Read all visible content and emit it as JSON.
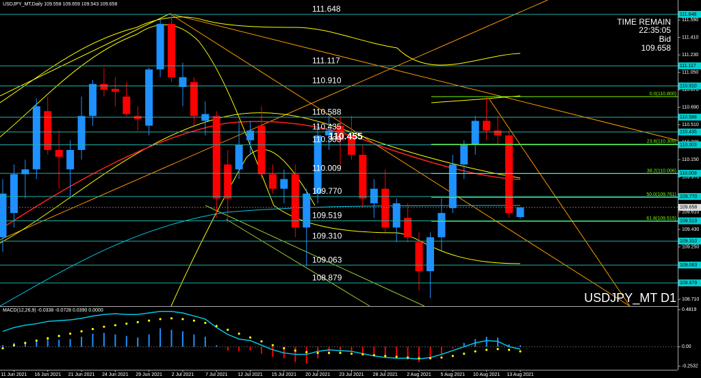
{
  "header": "USDJPY_MT,Daily  109.558 109.659 109.543 109.658",
  "info": {
    "time_label": "TIME REMAIN",
    "time": "22:35:05",
    "bid_label": "Bid",
    "symbol": "USDJPY_MT D1"
  },
  "chart_data": [
    {
      "type": "candlestick",
      "categories": [
        null,
        "11 Jun 2021",
        null,
        null,
        "16 Jun 2021",
        null,
        null,
        "21 Jun 2021",
        null,
        null,
        "24 Jun 2021",
        null,
        null,
        "29 Jun 2021",
        null,
        null,
        "2 Jul 2021",
        null,
        null,
        "7 Jul 2021",
        null,
        null,
        "12 Jul 2021",
        null,
        null,
        "15 Jul 2021",
        null,
        null,
        "20 Jul 2021",
        null,
        null,
        "23 Jul 2021",
        null,
        null,
        "28 Jul 2021",
        null,
        null,
        "2 Aug 2021",
        null,
        null,
        "5 Aug 2021",
        null,
        null,
        "10 Aug 2021",
        null,
        null,
        "13 Aug 2021"
      ],
      "open": [
        109.35,
        109.6,
        110.0,
        110.05,
        110.65,
        110.25,
        110.05,
        110.25,
        110.6,
        110.93,
        110.88,
        110.8,
        110.6,
        110.5,
        111.08,
        111.55,
        110.9,
        110.95,
        110.55,
        110.6,
        110.1,
        110.05,
        110.35,
        110.5,
        110.0,
        109.85,
        110.0,
        109.45,
        109.8,
        110.4,
        110.5,
        110.4,
        110.2,
        109.7,
        109.85,
        109.45,
        109.55,
        109.3,
        109.0,
        109.35,
        109.65,
        110.1,
        110.3,
        110.55,
        110.45,
        110.4,
        109.558
      ],
      "high": [
        109.95,
        110.1,
        110.15,
        110.78,
        110.8,
        110.45,
        110.35,
        110.8,
        110.97,
        111.1,
        111.0,
        110.95,
        110.7,
        111.1,
        111.6,
        111.66,
        111.15,
        111.0,
        110.75,
        110.65,
        110.25,
        110.55,
        110.55,
        110.7,
        110.1,
        110.05,
        110.1,
        109.85,
        110.55,
        110.6,
        110.6,
        110.6,
        110.3,
        109.95,
        110.05,
        109.75,
        109.7,
        109.4,
        109.4,
        109.75,
        110.2,
        110.35,
        110.6,
        110.8,
        110.6,
        110.45,
        109.659
      ],
      "low": [
        109.2,
        109.45,
        109.75,
        109.95,
        110.2,
        109.85,
        109.75,
        110.15,
        110.5,
        110.8,
        110.7,
        110.6,
        110.45,
        110.4,
        111.0,
        110.95,
        110.7,
        110.5,
        110.4,
        109.55,
        109.5,
        109.95,
        110.2,
        109.95,
        109.8,
        109.7,
        109.35,
        109.05,
        109.7,
        110.25,
        110.1,
        110.15,
        109.65,
        109.55,
        109.4,
        109.3,
        109.3,
        108.8,
        108.72,
        109.2,
        109.6,
        109.95,
        110.2,
        110.35,
        110.3,
        109.55,
        109.543
      ],
      "close": [
        109.8,
        110.0,
        110.05,
        110.7,
        110.25,
        110.18,
        110.25,
        110.6,
        110.93,
        110.87,
        110.85,
        110.62,
        110.57,
        111.08,
        111.55,
        111.0,
        111.0,
        110.6,
        110.62,
        109.75,
        109.75,
        110.3,
        110.45,
        110.0,
        109.85,
        109.95,
        109.45,
        109.8,
        110.4,
        110.45,
        110.35,
        110.2,
        109.75,
        109.85,
        109.45,
        109.7,
        109.35,
        109.0,
        109.35,
        109.6,
        110.1,
        110.3,
        110.55,
        110.45,
        110.4,
        109.6,
        109.658
      ],
      "up_color": "#1e90ff",
      "down_color": "#ff0000",
      "ylim": [
        108.64,
        111.796
      ],
      "yticks": [
        {
          "value": 111.59,
          "label": "111.590"
        },
        {
          "value": 111.41,
          "label": "111.410"
        },
        {
          "value": 111.23,
          "label": "111.230"
        },
        {
          "value": 111.05,
          "label": "111.050"
        },
        {
          "value": 110.87,
          "label": "110.870"
        },
        {
          "value": 110.69,
          "label": "110.690"
        },
        {
          "value": 110.51,
          "label": "110.510"
        },
        {
          "value": 110.33,
          "label": "110.330"
        },
        {
          "value": 110.15,
          "label": "110.150"
        },
        {
          "value": 109.97,
          "label": "109.970"
        },
        {
          "value": 109.61,
          "label": "109.610"
        },
        {
          "value": 109.43,
          "label": "109.430"
        },
        {
          "value": 109.25,
          "label": "109.250"
        },
        {
          "value": 108.71,
          "label": "108.710"
        }
      ],
      "levels": [
        111.648,
        111.117,
        {
          "value": 110.91,
          "label": "110.910"
        },
        110.588,
        110.435,
        110.303,
        110.009,
        {
          "value": 109.77,
          "label": "109.770"
        },
        109.519,
        {
          "value": 109.31,
          "label": "109.310"
        },
        109.063,
        108.879
      ],
      "fibo": [
        {
          "value": 110.8,
          "label": "0.0(110.800)"
        },
        {
          "value": 110.309,
          "label": "23.6(110.309)"
        },
        {
          "value": 110.006,
          "label": "38.2(110.006)"
        },
        {
          "value": 109.761,
          "label": "50.0(109.761)"
        },
        {
          "value": 109.515,
          "label": "61.8(109.515)"
        }
      ],
      "price_label": 110.455,
      "bid": 109.658
    },
    {
      "type": "macd",
      "title": "MACD(12,26,9) -0.0338 -0.0728 0.0390 0.0000",
      "values": [
        0.02,
        0.05,
        0.06,
        0.08,
        0.1,
        0.09,
        0.1,
        0.13,
        0.17,
        0.18,
        0.16,
        0.14,
        0.12,
        0.16,
        0.24,
        0.22,
        0.2,
        0.16,
        0.13,
        0.02,
        -0.05,
        -0.06,
        -0.05,
        -0.09,
        -0.13,
        -0.15,
        -0.2,
        -0.22,
        -0.15,
        -0.1,
        -0.07,
        -0.06,
        -0.1,
        -0.11,
        -0.14,
        -0.15,
        -0.17,
        -0.2,
        -0.16,
        -0.1,
        -0.02,
        0.05,
        0.1,
        0.13,
        0.12,
        0.03,
        0.02
      ],
      "signal": [
        -0.02,
        0.02,
        0.05,
        0.08,
        0.11,
        0.14,
        0.17,
        0.2,
        0.23,
        0.26,
        0.28,
        0.3,
        0.32,
        0.34,
        0.36,
        0.37,
        0.36,
        0.34,
        0.31,
        0.27,
        0.22,
        0.17,
        0.12,
        0.07,
        0.02,
        -0.02,
        -0.05,
        -0.07,
        -0.08,
        -0.08,
        -0.08,
        -0.09,
        -0.1,
        -0.11,
        -0.12,
        -0.13,
        -0.14,
        -0.15,
        -0.15,
        -0.14,
        -0.12,
        -0.09,
        -0.06,
        -0.04,
        -0.03,
        -0.04,
        -0.06
      ],
      "line": [
        0.2,
        0.25,
        0.28,
        0.3,
        0.33,
        0.34,
        0.35,
        0.37,
        0.4,
        0.42,
        0.43,
        0.42,
        0.42,
        0.44,
        0.46,
        0.46,
        0.44,
        0.4,
        0.36,
        0.25,
        0.16,
        0.1,
        0.08,
        0.02,
        -0.04,
        -0.08,
        -0.1,
        -0.1,
        -0.06,
        -0.04,
        -0.05,
        -0.06,
        -0.09,
        -0.12,
        -0.14,
        -0.15,
        -0.15,
        -0.16,
        -0.14,
        -0.1,
        -0.05,
        0.0,
        0.05,
        0.08,
        0.07,
        0.0,
        -0.03
      ],
      "hist_up_color": "#1e90ff",
      "hist_down_color": "#ff0000",
      "signal_color": "#ffff00",
      "line_color": "#00c8e6",
      "ylim": [
        -0.3,
        0.52
      ],
      "yticks": [
        0.4819,
        {
          "value": 0,
          "label": "0.00"
        },
        -0.2532
      ]
    }
  ]
}
